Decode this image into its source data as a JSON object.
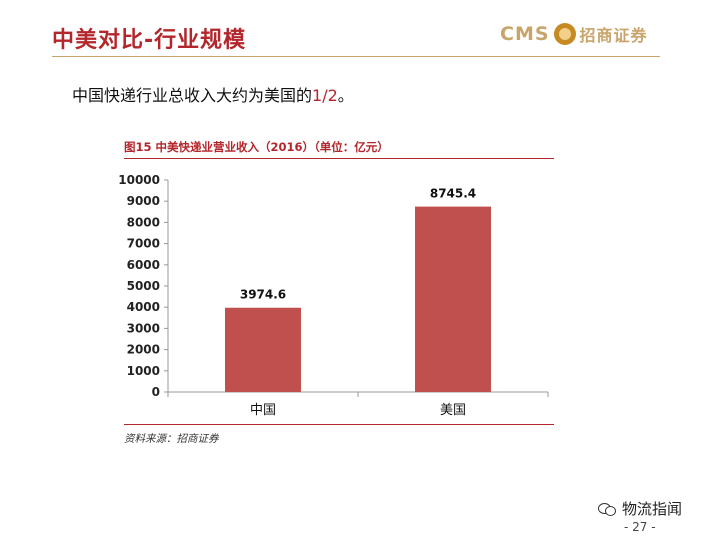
{
  "slide": {
    "title": "中美对比-行业规模",
    "logo_cms": "CMS",
    "logo_text": "招商证券",
    "subtitle_prefix": "中国快递行业总收入大约为美国的",
    "subtitle_highlight": "1/2",
    "subtitle_suffix": "。",
    "figure_title": "图15  中美快递业营业收入（2016）（单位：亿元）",
    "source": "资料来源：招商证券",
    "watermark": "物流指闻",
    "page_number": "- 27 -"
  },
  "colors": {
    "accent_red": "#b3262b",
    "bar": "#c0504d",
    "gold": "#c9a46a"
  },
  "chart_data": {
    "type": "bar",
    "categories": [
      "中国",
      "美国"
    ],
    "values": [
      3974.6,
      8745.4
    ],
    "value_labels": [
      "3974.6",
      "8745.4"
    ],
    "title": "图15  中美快递业营业收入（2016）（单位：亿元）",
    "xlabel": "",
    "ylabel": "",
    "ylim": [
      0,
      10000
    ],
    "yticks": [
      0,
      1000,
      2000,
      3000,
      4000,
      5000,
      6000,
      7000,
      8000,
      9000,
      10000
    ],
    "grid": false,
    "legend": "none"
  }
}
